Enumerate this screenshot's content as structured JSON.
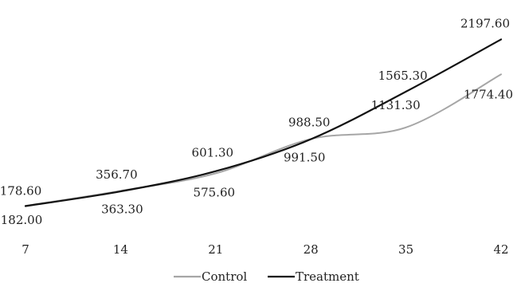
{
  "chart_data": {
    "type": "line",
    "x": [
      7,
      14,
      21,
      28,
      35,
      42
    ],
    "x_tick_labels": [
      "7",
      "14",
      "21",
      "28",
      "35",
      "42"
    ],
    "series": [
      {
        "name": "Control",
        "color": "#a6a6a6",
        "values": [
          182.0,
          363.3,
          575.6,
          991.5,
          1131.3,
          1774.4
        ],
        "labels": [
          "182.00",
          "363.30",
          "575.60",
          "991.50",
          "1131.30",
          "1774.40"
        ]
      },
      {
        "name": "Treatment",
        "color": "#111111",
        "values": [
          178.6,
          356.7,
          601.3,
          988.5,
          1565.3,
          2197.6
        ],
        "labels": [
          "178.60",
          "356.70",
          "601.30",
          "988.50",
          "1565.30",
          "2197.60"
        ]
      }
    ],
    "title": "",
    "xlabel": "",
    "ylabel": "",
    "ylim": [
      0,
      2400
    ],
    "grid": false,
    "legend": "bottom-center"
  }
}
